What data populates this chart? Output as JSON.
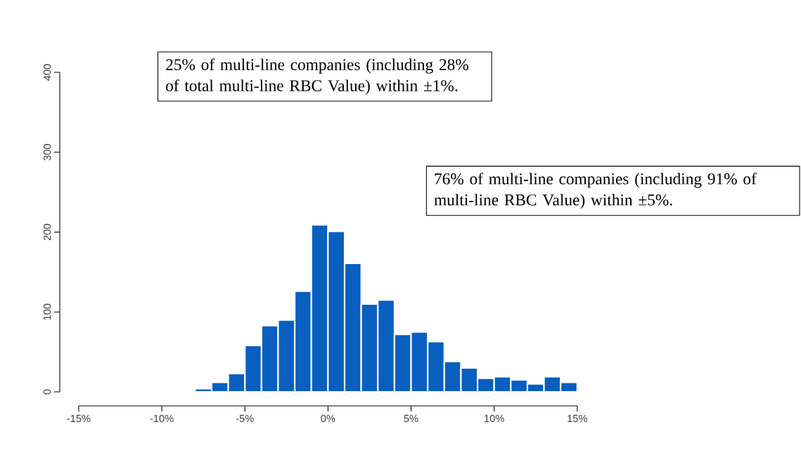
{
  "chart_data": {
    "type": "histogram",
    "bins": [
      -8,
      -7,
      -6,
      -5,
      -4,
      -3,
      -2,
      -1,
      0,
      1,
      2,
      3,
      4,
      5,
      6,
      7,
      8,
      9,
      10,
      11,
      12,
      13,
      14,
      15
    ],
    "values": [
      4,
      12,
      23,
      58,
      83,
      90,
      126,
      209,
      201,
      161,
      110,
      115,
      72,
      75,
      63,
      38,
      30,
      17,
      19,
      15,
      10,
      19,
      12
    ],
    "color": "#085fc0",
    "xlim": [
      -15,
      15
    ],
    "xticks": [
      {
        "value": -15,
        "label": "-15%"
      },
      {
        "value": -10,
        "label": "-10%"
      },
      {
        "value": -5,
        "label": "-5%"
      },
      {
        "value": 0,
        "label": "0%"
      },
      {
        "value": 5,
        "label": "5%"
      },
      {
        "value": 10,
        "label": "10%"
      },
      {
        "value": 15,
        "label": "15%"
      }
    ],
    "ylim": [
      0,
      400
    ],
    "yticks": [
      0,
      100,
      200,
      300,
      400
    ],
    "annotations": [
      "25% of multi-line companies (including 28% of total multi-line RBC Value) within ±1%.",
      "76% of multi-line companies (including 91% of multi-line RBC Value) within ±5%."
    ]
  }
}
